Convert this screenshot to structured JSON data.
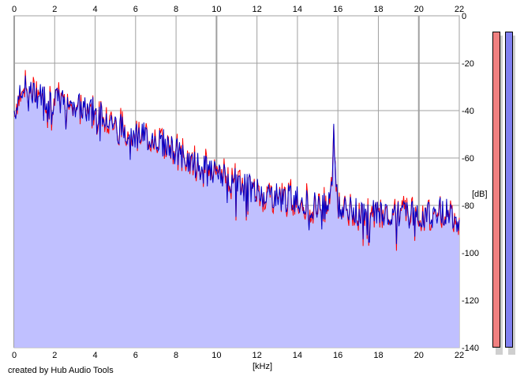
{
  "chart_data": {
    "type": "area",
    "xlabel": "[kHz]",
    "ylabel": "[dB]",
    "xlim": [
      0,
      22
    ],
    "ylim": [
      -140,
      0
    ],
    "x_ticks": [
      "0",
      "2",
      "4",
      "6",
      "8",
      "10",
      "12",
      "14",
      "16",
      "18",
      "20",
      "22"
    ],
    "y_ticks": [
      "0",
      "-20",
      "-40",
      "-60",
      "-80",
      "-100",
      "-120",
      "-140"
    ],
    "grid": true,
    "series": [
      {
        "x": [
          0,
          0.5,
          1,
          1.5,
          2,
          2.5,
          3,
          3.5,
          4,
          4.5,
          5,
          5.5,
          6,
          6.5,
          7,
          7.5,
          8,
          8.5,
          9,
          9.5,
          10,
          10.5,
          11,
          11.5,
          12,
          12.5,
          13,
          13.5,
          14,
          14.5,
          15,
          15.5,
          15.7,
          15.8,
          16,
          16.5,
          17,
          17.5,
          18,
          18.5,
          19,
          19.5,
          20,
          20.3,
          20.6,
          21,
          21.5,
          22
        ],
        "values": [
          -40,
          -30,
          -33,
          -34,
          -36,
          -36,
          -37,
          -40,
          -40,
          -41,
          -46,
          -48,
          -50,
          -51,
          -52,
          -54,
          -57,
          -61,
          -63,
          -65,
          -67,
          -68,
          -70,
          -72,
          -74,
          -75,
          -76,
          -77,
          -77,
          -79,
          -80,
          -80,
          -70,
          -50,
          -81,
          -82,
          -83,
          -83,
          -83,
          -83,
          -83,
          -84,
          -84,
          -84,
          -84,
          -82,
          -83,
          -86
        ]
      }
    ],
    "colors": {
      "fill": "#c0c0ff",
      "channel1": "#ff0000",
      "channel2": "#0000c8",
      "grid": "#a0a0a0"
    }
  },
  "meters": {
    "left_color": "#f08080",
    "right_color": "#8080f0"
  },
  "credit": "created by Hub Audio Tools"
}
